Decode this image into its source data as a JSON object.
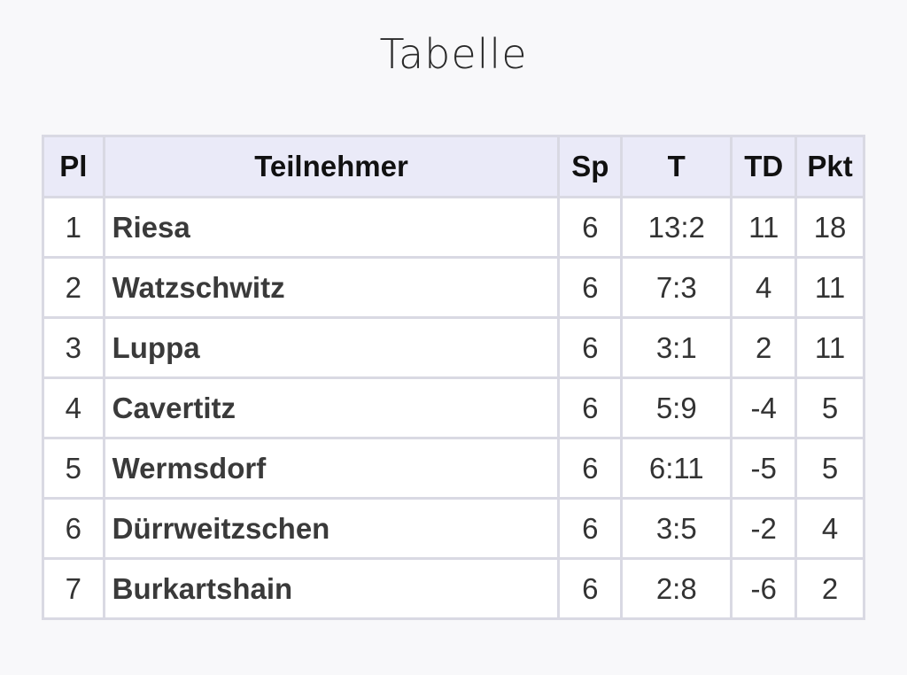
{
  "title": "Tabelle",
  "table": {
    "headers": {
      "pl": "Pl",
      "team": "Teilnehmer",
      "sp": "Sp",
      "t": "T",
      "td": "TD",
      "pkt": "Pkt"
    },
    "rows": [
      {
        "pl": "1",
        "team": "Riesa",
        "sp": "6",
        "t": "13:2",
        "td": "11",
        "pkt": "18"
      },
      {
        "pl": "2",
        "team": "Watzschwitz",
        "sp": "6",
        "t": "7:3",
        "td": "4",
        "pkt": "11"
      },
      {
        "pl": "3",
        "team": "Luppa",
        "sp": "6",
        "t": "3:1",
        "td": "2",
        "pkt": "11"
      },
      {
        "pl": "4",
        "team": "Cavertitz",
        "sp": "6",
        "t": "5:9",
        "td": "-4",
        "pkt": "5"
      },
      {
        "pl": "5",
        "team": "Wermsdorf",
        "sp": "6",
        "t": "6:11",
        "td": "-5",
        "pkt": "5"
      },
      {
        "pl": "6",
        "team": "Dürrweitzschen",
        "sp": "6",
        "t": "3:5",
        "td": "-2",
        "pkt": "4"
      },
      {
        "pl": "7",
        "team": "Burkartshain",
        "sp": "6",
        "t": "2:8",
        "td": "-6",
        "pkt": "2"
      }
    ]
  }
}
